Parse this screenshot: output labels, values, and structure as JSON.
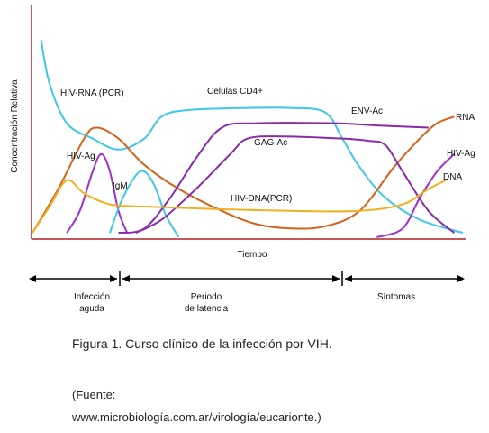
{
  "chart_data": {
    "type": "line",
    "title": "",
    "xlabel": "Tiempo",
    "ylabel": "Concentración Relativa",
    "x_range": [
      0,
      100
    ],
    "y_range": [
      0,
      100
    ],
    "grid": false,
    "legend": "inline labels",
    "series": [
      {
        "name": "Celulas CD4+",
        "color": "#3ec7e6",
        "points": [
          [
            2,
            90
          ],
          [
            4,
            70
          ],
          [
            8,
            52
          ],
          [
            14,
            45
          ],
          [
            20,
            40
          ],
          [
            26,
            45
          ],
          [
            30,
            55
          ],
          [
            36,
            58
          ],
          [
            50,
            59
          ],
          [
            60,
            59
          ],
          [
            68,
            57
          ],
          [
            72,
            45
          ],
          [
            76,
            32
          ],
          [
            82,
            18
          ],
          [
            90,
            8
          ],
          [
            100,
            2
          ]
        ]
      },
      {
        "name": "HIV-RNA (PCR)",
        "color": "#d2631c",
        "points": [
          [
            0,
            2
          ],
          [
            6,
            22
          ],
          [
            12,
            45
          ],
          [
            15,
            50
          ],
          [
            20,
            45
          ],
          [
            26,
            33
          ],
          [
            34,
            22
          ],
          [
            44,
            12
          ],
          [
            52,
            6
          ],
          [
            60,
            4
          ],
          [
            68,
            5
          ],
          [
            76,
            12
          ],
          [
            84,
            32
          ],
          [
            90,
            45
          ],
          [
            94,
            52
          ],
          [
            98,
            55
          ]
        ]
      },
      {
        "name": "HIV-Ag",
        "color": "#a030c8",
        "points": [
          [
            8,
            2
          ],
          [
            11,
            12
          ],
          [
            14,
            30
          ],
          [
            16,
            38
          ],
          [
            18,
            30
          ],
          [
            20,
            12
          ],
          [
            22,
            2
          ]
        ],
        "points_late": [
          [
            80,
            0
          ],
          [
            86,
            4
          ],
          [
            90,
            18
          ],
          [
            94,
            30
          ],
          [
            98,
            38
          ]
        ]
      },
      {
        "name": "IgM",
        "color": "#3ec7e6",
        "points": [
          [
            18,
            2
          ],
          [
            21,
            18
          ],
          [
            25,
            30
          ],
          [
            28,
            25
          ],
          [
            31,
            10
          ],
          [
            34,
            0
          ]
        ]
      },
      {
        "name": "ENV-Ac",
        "color": "#8a2aa8",
        "points": [
          [
            20,
            2
          ],
          [
            26,
            4
          ],
          [
            32,
            18
          ],
          [
            38,
            36
          ],
          [
            44,
            50
          ],
          [
            52,
            52
          ],
          [
            70,
            52
          ],
          [
            80,
            51
          ],
          [
            92,
            50
          ]
        ]
      },
      {
        "name": "GAG-Ac",
        "color": "#8a2aa8",
        "points": [
          [
            24,
            2
          ],
          [
            30,
            8
          ],
          [
            38,
            22
          ],
          [
            46,
            38
          ],
          [
            50,
            45
          ],
          [
            58,
            46
          ],
          [
            72,
            45
          ],
          [
            78,
            44
          ],
          [
            82,
            42
          ],
          [
            86,
            30
          ],
          [
            92,
            12
          ],
          [
            98,
            2
          ]
        ]
      },
      {
        "name": "HIV-DNA(PCR)",
        "color": "#f0b020",
        "points": [
          [
            0,
            2
          ],
          [
            4,
            14
          ],
          [
            8,
            26
          ],
          [
            12,
            20
          ],
          [
            18,
            15
          ],
          [
            26,
            14
          ],
          [
            40,
            13
          ],
          [
            60,
            12
          ],
          [
            76,
            12
          ],
          [
            86,
            15
          ],
          [
            92,
            22
          ],
          [
            96,
            26
          ]
        ]
      }
    ],
    "series_labels": {
      "celulas": "Celulas CD4+",
      "hivrna": "HIV-RNA (PCR)",
      "hivag": "HIV-Ag",
      "igm": "IgM",
      "envac": "ENV-Ac",
      "gagac": "GAG-Ac",
      "hivdna": "HIV-DNA(PCR)",
      "rna": "RNA",
      "hivag_right": "HIV-Ag",
      "dna": "DNA"
    },
    "phases": [
      {
        "label_line1": "Infección",
        "label_line2": "aguda"
      },
      {
        "label_line1": "Periodo",
        "label_line2": "de latencia"
      },
      {
        "label_line1": "Síntomas",
        "label_line2": ""
      }
    ]
  },
  "caption": "Figura 1. Curso clínico de la infección por VIH.",
  "source_line1": "(Fuente:",
  "source_line2": "www.microbiología.com.ar/virología/eucarionte.)"
}
